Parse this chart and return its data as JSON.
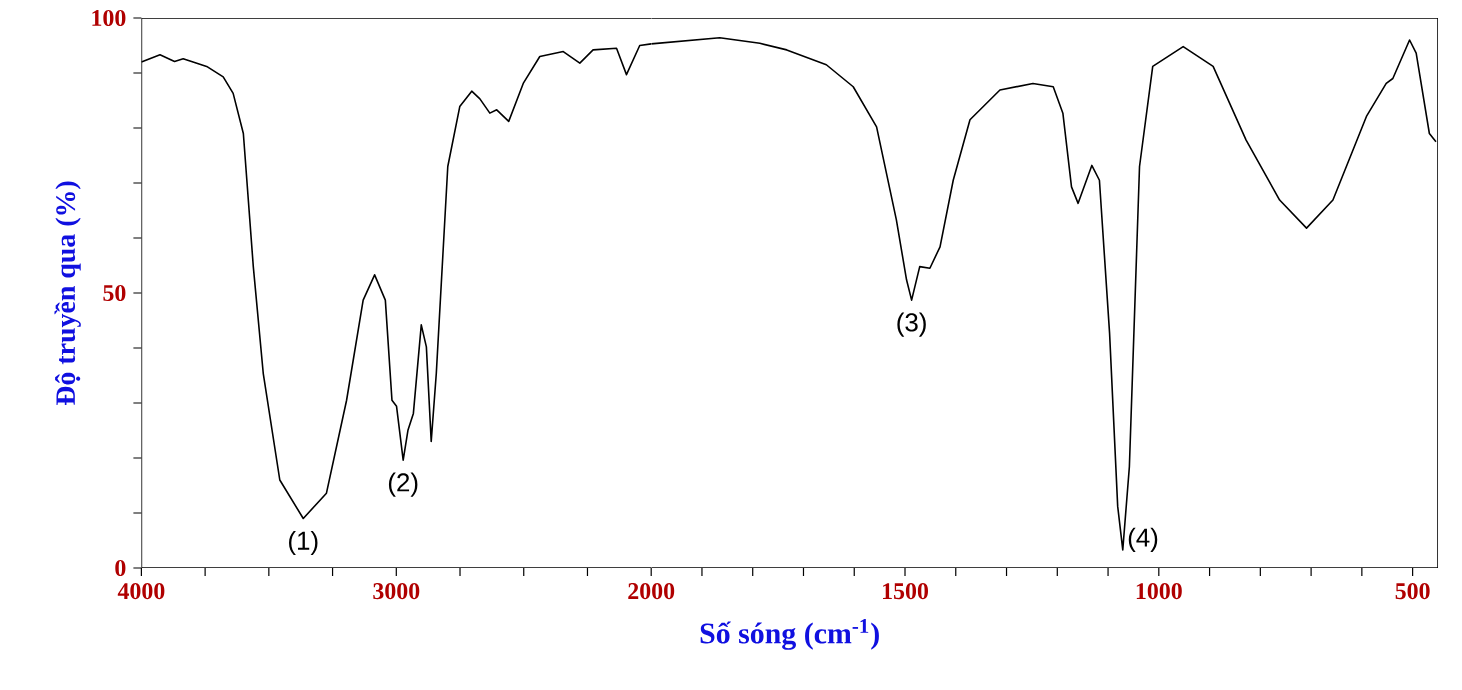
{
  "chart_data": [
    {
      "type": "line",
      "ylabel": "Độ truyền qua (%)",
      "xlim": [
        4000,
        2000
      ],
      "ylim": [
        0,
        100
      ],
      "xticks": [
        4000,
        {
          "value": 3750,
          "label": null
        },
        {
          "value": 3500,
          "label": null
        },
        {
          "value": 3250,
          "label": null
        },
        3000,
        {
          "value": 2750,
          "label": null
        },
        {
          "value": 2500,
          "label": null
        },
        {
          "value": 2250,
          "label": null
        },
        2000
      ],
      "yticks": [
        0,
        {
          "value": 10,
          "label": null
        },
        {
          "value": 20,
          "label": null
        },
        {
          "value": 30,
          "label": null
        },
        {
          "value": 40,
          "label": null
        },
        50,
        {
          "value": 60,
          "label": null
        },
        {
          "value": 70,
          "label": null
        },
        {
          "value": 80,
          "label": null
        },
        {
          "value": 90,
          "label": null
        },
        100
      ],
      "series": [
        {
          "color": "#000000",
          "x": [
            4000,
            3927,
            3870,
            3836,
            3744,
            3679,
            3640,
            3600,
            3561,
            3522,
            3457,
            3365,
            3274,
            3195,
            3130,
            3085,
            3043,
            3017,
            2999,
            2973,
            2954,
            2933,
            2902,
            2882,
            2863,
            2843,
            2798,
            2751,
            2704,
            2672,
            2633,
            2606,
            2559,
            2502,
            2437,
            2345,
            2280,
            2228,
            2136,
            2097,
            2045,
            2000
          ],
          "values": [
            92,
            93.3,
            92.1,
            92.6,
            91.2,
            89.3,
            86.3,
            79,
            54.8,
            35.4,
            16,
            9,
            13.6,
            30.5,
            48.7,
            53.3,
            48.7,
            30.5,
            29.4,
            19.6,
            25.1,
            28.1,
            44.2,
            40.2,
            23,
            35.4,
            73,
            83.9,
            86.7,
            85.3,
            82.7,
            83.3,
            81.2,
            88.1,
            93,
            93.9,
            91.8,
            94.2,
            94.5,
            89.7,
            95,
            95.3
          ]
        }
      ],
      "annotations": [
        {
          "text": "(1)",
          "x": 3365,
          "y": 9
        },
        {
          "text": "(2)",
          "x": 2973,
          "y": 19.6
        }
      ]
    },
    {
      "type": "line",
      "xlabel": "Số sóng (cm$^{-1}$)",
      "xlim": [
        2000,
        450
      ],
      "ylim": [
        0,
        100
      ],
      "tick_labels": "x",
      "xticks": [
        {
          "value": 1900,
          "label": null
        },
        {
          "value": 1800,
          "label": null
        },
        {
          "value": 1700,
          "label": null
        },
        {
          "value": 1600,
          "label": null
        },
        1500,
        {
          "value": 1400,
          "label": null
        },
        {
          "value": 1300,
          "label": null
        },
        {
          "value": 1200,
          "label": null
        },
        {
          "value": 1100,
          "label": null
        },
        1000,
        {
          "value": 900,
          "label": null
        },
        {
          "value": 800,
          "label": null
        },
        {
          "value": 700,
          "label": null
        },
        {
          "value": 600,
          "label": null
        },
        500
      ],
      "series": [
        {
          "color": "#000000",
          "x": [
            2000,
            1865,
            1786,
            1733,
            1655,
            1602,
            1556,
            1517,
            1497,
            1487,
            1471,
            1451,
            1431,
            1405,
            1372,
            1313,
            1248,
            1208,
            1189,
            1172,
            1159,
            1132,
            1117,
            1097,
            1081,
            1071,
            1058,
            1038,
            1012,
            952,
            893,
            828,
            762,
            709,
            657,
            591,
            552,
            539,
            506,
            493,
            467,
            454
          ],
          "values": [
            95.3,
            96.4,
            95.4,
            94.2,
            91.5,
            87.5,
            80.2,
            63.3,
            52.4,
            48.7,
            54.8,
            54.5,
            58.4,
            70.5,
            81.5,
            86.9,
            88.1,
            87.5,
            82.7,
            69.3,
            66.3,
            73.2,
            70.5,
            42.7,
            11.2,
            3.3,
            18.4,
            73,
            91.2,
            94.8,
            91.2,
            77.8,
            66.9,
            61.8,
            66.9,
            82.1,
            88.1,
            89,
            96,
            93.6,
            79,
            77.5
          ]
        }
      ],
      "annotations": [
        {
          "text": "(3)",
          "x": 1487,
          "y": 48.7
        },
        {
          "text": "(4)",
          "x": 1071,
          "y": 3.3
        }
      ]
    }
  ]
}
